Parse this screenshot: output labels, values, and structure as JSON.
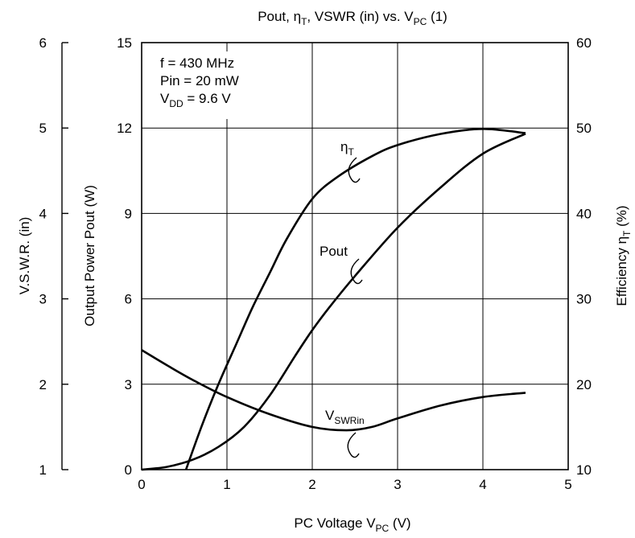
{
  "chart_data": {
    "type": "line",
    "title": {
      "main": "Pout, η",
      "sub1": "T",
      "mid": ", VSWR (in) vs. V",
      "sub2": "PC",
      "end": " (1)"
    },
    "xlabel": {
      "main": "PC Voltage  V",
      "sub": "PC",
      "end": "   (V)"
    },
    "ylabel_left_outer": "V.S.W.R. (in)",
    "ylabel_left_inner": "Output Power Pout (W)",
    "ylabel_right": {
      "main": "Efficiency  η",
      "sub": "T",
      "end": "  (%)"
    },
    "xlim": [
      0,
      5
    ],
    "xticks": [
      "0",
      "1",
      "2",
      "3",
      "4",
      "5"
    ],
    "ylim_pout": [
      0,
      15
    ],
    "yticks_pout": [
      "0",
      "3",
      "6",
      "9",
      "12",
      "15"
    ],
    "ylim_vswr": [
      1,
      6
    ],
    "yticks_vswr": [
      "1",
      "2",
      "3",
      "4",
      "5",
      "6"
    ],
    "ylim_eff": [
      10,
      60
    ],
    "yticks_eff": [
      "10",
      "20",
      "30",
      "40",
      "50",
      "60"
    ],
    "grid": true,
    "conditions": {
      "line1": "f = 430 MHz",
      "line2": "Pin = 20 mW",
      "line3_main": "V",
      "line3_sub": "DD",
      "line3_end": " = 9.6 V"
    },
    "series": [
      {
        "name": "Pout",
        "axis": "pout",
        "x": [
          0,
          0.3,
          0.6,
          0.9,
          1.2,
          1.5,
          1.8,
          2.0,
          2.2,
          2.5,
          3.0,
          3.5,
          4.0,
          4.5
        ],
        "y": [
          0,
          0.1,
          0.35,
          0.8,
          1.5,
          2.6,
          4.0,
          4.9,
          5.7,
          6.8,
          8.5,
          9.9,
          11.1,
          11.8
        ]
      },
      {
        "name": "ηT",
        "label_main": "η",
        "label_sub": "T",
        "axis": "eff",
        "x": [
          0.52,
          0.7,
          0.9,
          1.1,
          1.3,
          1.5,
          1.7,
          2.0,
          2.3,
          2.7,
          3.0,
          3.5,
          4.0,
          4.5
        ],
        "y": [
          10,
          15,
          20,
          24.5,
          29,
          33,
          37,
          41.7,
          44.3,
          46.7,
          48,
          49.3,
          49.9,
          49.4
        ]
      },
      {
        "name": "VSWRin",
        "label_main": "V",
        "label_sub": "SWRin",
        "axis": "vswr",
        "x": [
          0,
          0.3,
          0.6,
          1.0,
          1.5,
          2.0,
          2.4,
          2.7,
          3.0,
          3.5,
          4.0,
          4.5
        ],
        "y": [
          2.4,
          2.22,
          2.05,
          1.85,
          1.65,
          1.5,
          1.46,
          1.5,
          1.6,
          1.75,
          1.85,
          1.9
        ]
      }
    ]
  }
}
